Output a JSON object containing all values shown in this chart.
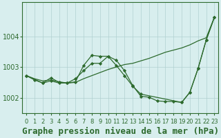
{
  "title": "Graphe pression niveau de la mer (hPa)",
  "x_labels": [
    "0",
    "1",
    "2",
    "3",
    "4",
    "5",
    "6",
    "7",
    "8",
    "9",
    "10",
    "11",
    "12",
    "13",
    "14",
    "15",
    "16",
    "17",
    "18",
    "19",
    "20",
    "21",
    "22",
    "23"
  ],
  "x_values": [
    0,
    1,
    2,
    3,
    4,
    5,
    6,
    7,
    8,
    9,
    10,
    11,
    12,
    13,
    14,
    15,
    16,
    17,
    18,
    19,
    20,
    21,
    22,
    23
  ],
  "line1_x": [
    0,
    1,
    2,
    3,
    4,
    5,
    6,
    7,
    8,
    9,
    10,
    11,
    12,
    13,
    14,
    15,
    16,
    17,
    18,
    19,
    20,
    21,
    22,
    23
  ],
  "line1_y": [
    1002.72,
    1002.62,
    1002.55,
    1002.58,
    1002.52,
    1002.48,
    1002.5,
    1002.62,
    1002.72,
    1002.82,
    1002.92,
    1003.0,
    1003.08,
    1003.12,
    1003.2,
    1003.28,
    1003.38,
    1003.48,
    1003.55,
    1003.62,
    1003.72,
    1003.85,
    1003.95,
    1004.62
  ],
  "line2_x": [
    0,
    1,
    2,
    3,
    4,
    5,
    6,
    7,
    8,
    9,
    10,
    11,
    12,
    13,
    14,
    15,
    16,
    17,
    18,
    19,
    20,
    21,
    22,
    23
  ],
  "line2_y": [
    1002.72,
    1002.58,
    1002.48,
    1002.65,
    1002.5,
    1002.48,
    1002.52,
    1003.05,
    1003.38,
    1003.35,
    1003.35,
    1003.22,
    1002.88,
    1002.4,
    1002.05,
    1002.02,
    1001.9,
    1001.88,
    1001.88,
    1001.85,
    1002.18,
    1002.95,
    1003.88,
    1004.62
  ],
  "line3_x": [
    0,
    2,
    3,
    4,
    5,
    6,
    7,
    8,
    9,
    10,
    11,
    12,
    13,
    14,
    19,
    20,
    21,
    22,
    23
  ],
  "line3_y": [
    1002.72,
    1002.48,
    1002.55,
    1002.48,
    1002.48,
    1002.62,
    1002.88,
    1003.12,
    1003.12,
    1003.35,
    1003.05,
    1002.72,
    1002.38,
    1002.12,
    1001.85,
    1002.18,
    1002.95,
    1003.88,
    1004.62
  ],
  "line_color": "#2d6a2d",
  "bg_color": "#d8eeee",
  "grid_color": "#b0d0d0",
  "ylim_min": 1001.5,
  "ylim_max": 1005.1,
  "yticks": [
    1002,
    1003,
    1004
  ],
  "title_fontsize": 9,
  "xtick_fontsize": 6,
  "ytick_fontsize": 7
}
